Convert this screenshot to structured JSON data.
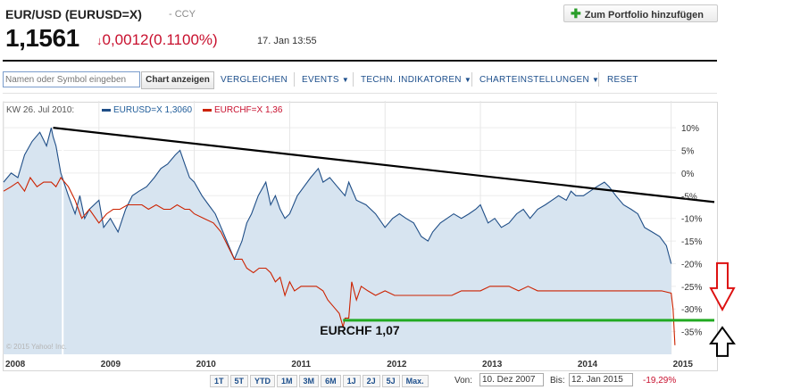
{
  "header": {
    "title": "EUR/USD (EURUSD=X)",
    "type_label": "- CCY",
    "price": "1,1561",
    "change": "0,0012",
    "change_pct": "(0.1100%)",
    "datetime": "17. Jan 13:55",
    "portfolio_button": "Zum Portfolio hinzufügen"
  },
  "toolbar": {
    "symbol_placeholder": "Namen oder Symbol eingeben",
    "chart_button": "Chart anzeigen",
    "menu": [
      {
        "label": "VERGLEICHEN",
        "dropdown": false
      },
      {
        "label": "EVENTS",
        "dropdown": true
      },
      {
        "label": "TECHN. INDIKATOREN",
        "dropdown": true
      },
      {
        "label": "CHARTEINSTELLUNGEN",
        "dropdown": true
      },
      {
        "label": "RESET",
        "dropdown": false
      }
    ]
  },
  "legend": {
    "week": "KW 26. Jul 2010:",
    "series1": "EURUSD=X 1,3060",
    "series2": "EURCHF=X 1,36"
  },
  "colors": {
    "eurusd": "#1f4e87",
    "eurusd_fill": "#d7e4f0",
    "eurchf": "#cc2200",
    "trendline": "#000000",
    "support_line": "#22aa22",
    "arrow_down": "#dd1111",
    "arrow_up": "#000000"
  },
  "chart_data": {
    "type": "line",
    "y_unit": "%",
    "y_ticks": [
      "10%",
      "5%",
      "0%",
      "-5%",
      "-10%",
      "-15%",
      "-20%",
      "-25%",
      "-30%",
      "-35%"
    ],
    "x_ticks": [
      "2008",
      "2009",
      "2010",
      "2011",
      "2012",
      "2013",
      "2014",
      "2015"
    ],
    "ylim": [
      -40,
      12
    ],
    "xlim": [
      2008.0,
      2015.05
    ],
    "watermark": "© 2015 Yahoo! Inc.",
    "series": [
      {
        "name": "EURUSD=X",
        "points": [
          [
            2008.0,
            -2
          ],
          [
            2008.08,
            0
          ],
          [
            2008.15,
            -1
          ],
          [
            2008.22,
            4
          ],
          [
            2008.3,
            7
          ],
          [
            2008.38,
            9
          ],
          [
            2008.45,
            6
          ],
          [
            2008.5,
            10
          ],
          [
            2008.52,
            8
          ],
          [
            2008.55,
            6
          ],
          [
            2008.6,
            0
          ],
          [
            2008.68,
            -5
          ],
          [
            2008.75,
            -9
          ],
          [
            2008.8,
            -5
          ],
          [
            2008.85,
            -10
          ],
          [
            2008.9,
            -8
          ],
          [
            2009.0,
            -6
          ],
          [
            2009.05,
            -12
          ],
          [
            2009.12,
            -10
          ],
          [
            2009.2,
            -13
          ],
          [
            2009.28,
            -8
          ],
          [
            2009.35,
            -5
          ],
          [
            2009.42,
            -4
          ],
          [
            2009.5,
            -3
          ],
          [
            2009.58,
            -1
          ],
          [
            2009.65,
            1
          ],
          [
            2009.72,
            2
          ],
          [
            2009.8,
            4
          ],
          [
            2009.85,
            5
          ],
          [
            2009.9,
            2
          ],
          [
            2009.95,
            -1
          ],
          [
            2010.0,
            -2
          ],
          [
            2010.08,
            -5
          ],
          [
            2010.15,
            -7
          ],
          [
            2010.22,
            -9
          ],
          [
            2010.3,
            -13
          ],
          [
            2010.38,
            -17
          ],
          [
            2010.42,
            -19
          ],
          [
            2010.5,
            -15
          ],
          [
            2010.55,
            -11
          ],
          [
            2010.6,
            -9
          ],
          [
            2010.67,
            -5
          ],
          [
            2010.75,
            -2
          ],
          [
            2010.8,
            -7
          ],
          [
            2010.85,
            -5
          ],
          [
            2010.9,
            -8
          ],
          [
            2010.95,
            -10
          ],
          [
            2011.0,
            -9
          ],
          [
            2011.08,
            -5
          ],
          [
            2011.15,
            -3
          ],
          [
            2011.22,
            -1
          ],
          [
            2011.3,
            1
          ],
          [
            2011.35,
            -2
          ],
          [
            2011.42,
            -1
          ],
          [
            2011.5,
            -3
          ],
          [
            2011.58,
            -5
          ],
          [
            2011.62,
            -2
          ],
          [
            2011.7,
            -6
          ],
          [
            2011.8,
            -7
          ],
          [
            2011.9,
            -9
          ],
          [
            2012.0,
            -12
          ],
          [
            2012.08,
            -10
          ],
          [
            2012.15,
            -9
          ],
          [
            2012.22,
            -10
          ],
          [
            2012.3,
            -11
          ],
          [
            2012.38,
            -14
          ],
          [
            2012.45,
            -15
          ],
          [
            2012.5,
            -13
          ],
          [
            2012.58,
            -11
          ],
          [
            2012.65,
            -10
          ],
          [
            2012.72,
            -9
          ],
          [
            2012.8,
            -10
          ],
          [
            2012.88,
            -9
          ],
          [
            2012.95,
            -8
          ],
          [
            2013.0,
            -7
          ],
          [
            2013.08,
            -11
          ],
          [
            2013.15,
            -10
          ],
          [
            2013.22,
            -12
          ],
          [
            2013.3,
            -11
          ],
          [
            2013.38,
            -9
          ],
          [
            2013.45,
            -8
          ],
          [
            2013.52,
            -10
          ],
          [
            2013.6,
            -8
          ],
          [
            2013.68,
            -7
          ],
          [
            2013.75,
            -6
          ],
          [
            2013.82,
            -5
          ],
          [
            2013.9,
            -6
          ],
          [
            2013.95,
            -4
          ],
          [
            2014.0,
            -5
          ],
          [
            2014.08,
            -5
          ],
          [
            2014.15,
            -4
          ],
          [
            2014.22,
            -3
          ],
          [
            2014.3,
            -2
          ],
          [
            2014.35,
            -3
          ],
          [
            2014.42,
            -5
          ],
          [
            2014.5,
            -7
          ],
          [
            2014.58,
            -8
          ],
          [
            2014.65,
            -9
          ],
          [
            2014.72,
            -12
          ],
          [
            2014.8,
            -13
          ],
          [
            2014.88,
            -14
          ],
          [
            2014.95,
            -16
          ],
          [
            2015.0,
            -20
          ]
        ]
      },
      {
        "name": "EURCHF=X",
        "points": [
          [
            2008.0,
            -4
          ],
          [
            2008.08,
            -3
          ],
          [
            2008.15,
            -2
          ],
          [
            2008.22,
            -4
          ],
          [
            2008.28,
            -1
          ],
          [
            2008.35,
            -3
          ],
          [
            2008.42,
            -2
          ],
          [
            2008.5,
            -2
          ],
          [
            2008.55,
            -3
          ],
          [
            2008.6,
            -1
          ],
          [
            2008.68,
            -3
          ],
          [
            2008.75,
            -6
          ],
          [
            2008.82,
            -10
          ],
          [
            2008.9,
            -8
          ],
          [
            2009.0,
            -11
          ],
          [
            2009.08,
            -9
          ],
          [
            2009.15,
            -8
          ],
          [
            2009.22,
            -8
          ],
          [
            2009.3,
            -7
          ],
          [
            2009.38,
            -7
          ],
          [
            2009.45,
            -7
          ],
          [
            2009.52,
            -8
          ],
          [
            2009.6,
            -7
          ],
          [
            2009.68,
            -8
          ],
          [
            2009.75,
            -8
          ],
          [
            2009.82,
            -7
          ],
          [
            2009.9,
            -8
          ],
          [
            2009.95,
            -8
          ],
          [
            2010.0,
            -9
          ],
          [
            2010.1,
            -10
          ],
          [
            2010.2,
            -11
          ],
          [
            2010.28,
            -13
          ],
          [
            2010.35,
            -16
          ],
          [
            2010.42,
            -19
          ],
          [
            2010.5,
            -19
          ],
          [
            2010.55,
            -21
          ],
          [
            2010.62,
            -22
          ],
          [
            2010.68,
            -21
          ],
          [
            2010.75,
            -21
          ],
          [
            2010.8,
            -22
          ],
          [
            2010.85,
            -24
          ],
          [
            2010.9,
            -23
          ],
          [
            2010.95,
            -27
          ],
          [
            2011.0,
            -24
          ],
          [
            2011.05,
            -26
          ],
          [
            2011.12,
            -25
          ],
          [
            2011.2,
            -25
          ],
          [
            2011.28,
            -25
          ],
          [
            2011.35,
            -26
          ],
          [
            2011.4,
            -28
          ],
          [
            2011.48,
            -30
          ],
          [
            2011.52,
            -31
          ],
          [
            2011.56,
            -34
          ],
          [
            2011.58,
            -32
          ],
          [
            2011.62,
            -32
          ],
          [
            2011.65,
            -24
          ],
          [
            2011.7,
            -28
          ],
          [
            2011.75,
            -25
          ],
          [
            2011.82,
            -26
          ],
          [
            2011.9,
            -27
          ],
          [
            2012.0,
            -26
          ],
          [
            2012.1,
            -27
          ],
          [
            2012.2,
            -27
          ],
          [
            2012.3,
            -27
          ],
          [
            2012.4,
            -27
          ],
          [
            2012.5,
            -27
          ],
          [
            2012.6,
            -27
          ],
          [
            2012.7,
            -27
          ],
          [
            2012.8,
            -26
          ],
          [
            2012.9,
            -26
          ],
          [
            2013.0,
            -26
          ],
          [
            2013.1,
            -25
          ],
          [
            2013.2,
            -25
          ],
          [
            2013.3,
            -25
          ],
          [
            2013.4,
            -26
          ],
          [
            2013.5,
            -25
          ],
          [
            2013.6,
            -26
          ],
          [
            2013.7,
            -26
          ],
          [
            2013.8,
            -26
          ],
          [
            2013.9,
            -26
          ],
          [
            2014.0,
            -26
          ],
          [
            2014.1,
            -26
          ],
          [
            2014.2,
            -26
          ],
          [
            2014.3,
            -26
          ],
          [
            2014.4,
            -26
          ],
          [
            2014.5,
            -26
          ],
          [
            2014.6,
            -26
          ],
          [
            2014.7,
            -26
          ],
          [
            2014.8,
            -26
          ],
          [
            2014.9,
            -26
          ],
          [
            2015.0,
            -26.5
          ],
          [
            2015.02,
            -30
          ],
          [
            2015.04,
            -38
          ]
        ]
      }
    ],
    "annotations": {
      "trendline_from": [
        2008.52,
        10
      ],
      "trendline_to": [
        2015.05,
        -6
      ],
      "support_label": "EURCHF 1,07",
      "support_line_y": -32.5,
      "support_line_from_x": 2011.56,
      "highlight_x": 2008.62
    }
  },
  "range_buttons": [
    "1T",
    "5T",
    "YTD",
    "1M",
    "3M",
    "6M",
    "1J",
    "2J",
    "5J",
    "Max."
  ],
  "date_range": {
    "from_label": "Von:",
    "from_value": "10. Dez 2007",
    "to_label": "Bis:",
    "to_value": "12. Jan 2015",
    "change": "-19,29%"
  }
}
